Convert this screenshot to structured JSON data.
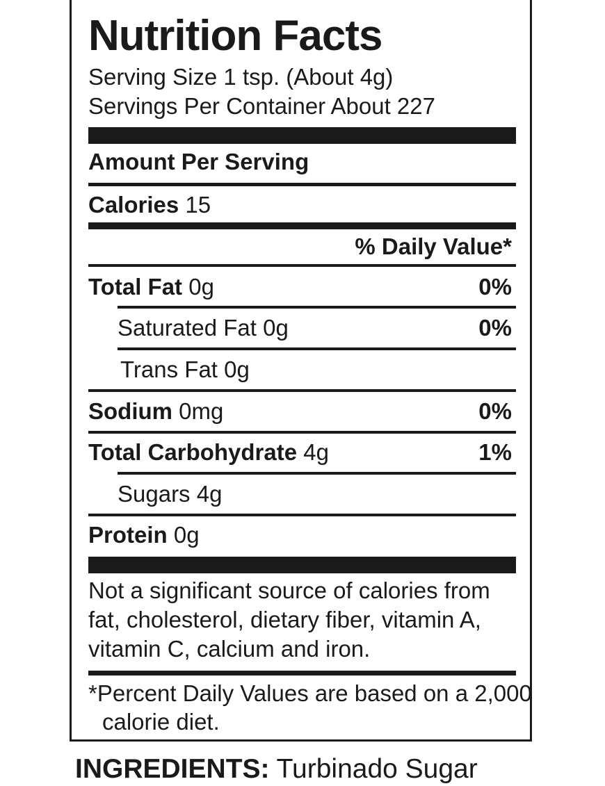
{
  "label": {
    "title": "Nutrition Facts",
    "serving_size": "Serving Size 1 tsp. (About 4g)",
    "servings_per_container": "Servings Per Container About 227",
    "amount_per_serving": "Amount Per Serving",
    "calories_label": "Calories",
    "calories_value": "15",
    "daily_value_header": "% Daily Value*",
    "rows": [
      {
        "name": "Total Fat",
        "amount": "0g",
        "dv": "0%"
      },
      {
        "name": "Saturated Fat",
        "amount": "0g",
        "dv": "0%"
      },
      {
        "name": "Trans Fat",
        "amount": "0g",
        "dv": ""
      },
      {
        "name": "Sodium",
        "amount": "0mg",
        "dv": "0%"
      },
      {
        "name": "Total Carbohydrate",
        "amount": "4g",
        "dv": "1%"
      },
      {
        "name": "Sugars",
        "amount": "4g",
        "dv": ""
      },
      {
        "name": "Protein",
        "amount": "0g",
        "dv": ""
      }
    ],
    "footnote_lines": [
      "Not a significant source of calories from",
      "fat, cholesterol, dietary fiber, vitamin A,",
      "vitamin C, calcium and iron."
    ],
    "percent_note_lines": [
      "*Percent Daily Values are based on a 2,000",
      "calorie diet."
    ]
  },
  "ingredients": {
    "label": "INGREDIENTS:",
    "value": "Turbinado Sugar"
  }
}
